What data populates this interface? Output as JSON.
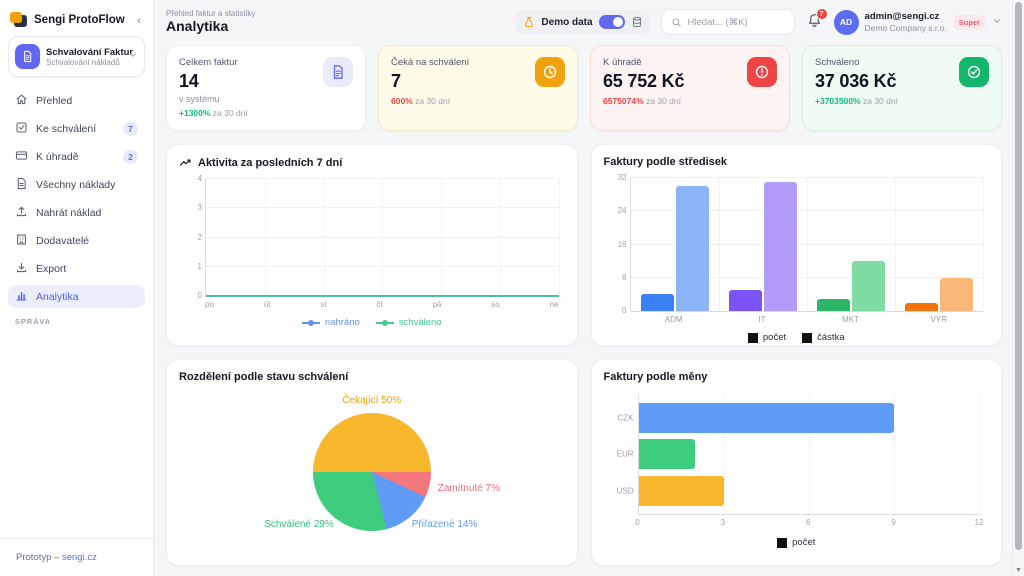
{
  "app": {
    "accent": "#5b6cf5"
  },
  "sidebar": {
    "brand": "Sengi ProtoFlow",
    "collapse_glyph": "‹",
    "workspace": {
      "title": "Schvalování Faktur",
      "subtitle": "Schvalování nákladů"
    },
    "items": [
      {
        "label": "Přehled",
        "icon": "home-icon"
      },
      {
        "label": "Ke schválení",
        "icon": "check-square-icon",
        "badge": "7"
      },
      {
        "label": "K úhradě",
        "icon": "credit-card-icon",
        "badge": "2"
      },
      {
        "label": "Všechny náklady",
        "icon": "file-text-icon"
      },
      {
        "label": "Nahrát náklad",
        "icon": "upload-icon"
      },
      {
        "label": "Dodavatelé",
        "icon": "building-icon"
      },
      {
        "label": "Export",
        "icon": "download-icon"
      },
      {
        "label": "Analytika",
        "icon": "bar-chart-icon",
        "active": true
      }
    ],
    "section_label": "SPRÁVA",
    "footer": {
      "text": "Prototyp",
      "separator": "–",
      "link": "sengi.cz"
    }
  },
  "header": {
    "breadcrumb": "Přehled faktur a statistiky",
    "title": "Analytika",
    "demo": {
      "label": "Demo data",
      "toggle_on": true
    },
    "search_placeholder": "Hledat... (⌘K)",
    "notification_count": "7",
    "user": {
      "initials": "AD",
      "email": "admin@sengi.cz",
      "company": "Demo Company s.r.o.",
      "role_badge": "Super"
    }
  },
  "stats": [
    {
      "label": "Celkem faktur",
      "value": "14",
      "sub": "v systému",
      "trend": "+1300%",
      "trend_note": "za 30 dní",
      "trend_color": "#10b981",
      "icon": "invoice-icon",
      "tint": "white"
    },
    {
      "label": "Čeká na schválení",
      "value": "7",
      "sub": "",
      "trend": "600%",
      "trend_note": "za 30 dní",
      "trend_color": "#ef4444",
      "icon": "clock-icon",
      "tint": "yellow"
    },
    {
      "label": "K úhradě",
      "value": "65 752 Kč",
      "sub": "",
      "trend": "6575074%",
      "trend_note": "za 30 dní",
      "trend_color": "#ef4444",
      "icon": "alert-icon",
      "tint": "red"
    },
    {
      "label": "Schváleno",
      "value": "37 036 Kč",
      "sub": "",
      "trend": "+3703500%",
      "trend_note": "za 30 dní",
      "trend_color": "#10b981",
      "icon": "check-icon",
      "tint": "green"
    }
  ],
  "chart_data": [
    {
      "name": "activity",
      "type": "line",
      "title": "Aktivita za posledních 7 dní",
      "title_icon": "trend-up-icon",
      "x": [
        "po",
        "út",
        "st",
        "čt",
        "pá",
        "so",
        "ne"
      ],
      "series": [
        {
          "name": "nahráno",
          "color": "#6690f2",
          "values": [
            0,
            0,
            0,
            0,
            0,
            0,
            0
          ]
        },
        {
          "name": "schváleno",
          "color": "#41c98e",
          "values": [
            0,
            0,
            0,
            0,
            0,
            0,
            0
          ]
        }
      ],
      "ylim": [
        0,
        4
      ],
      "yticks": [
        0,
        1,
        2,
        3,
        4
      ],
      "line_color": "#4bc3a2",
      "grid": true,
      "legend_position": "bottom"
    },
    {
      "name": "cost-centers",
      "type": "bar",
      "title": "Faktury podle středisek",
      "categories": [
        "ADM",
        "IT",
        "MKT",
        "VÝR"
      ],
      "series": [
        {
          "name": "počet",
          "values": [
            4,
            5,
            3,
            2
          ],
          "colors": [
            "#3b82f6",
            "#7c53f4",
            "#2eb567",
            "#f4740c"
          ]
        },
        {
          "name": "částka",
          "values": [
            30,
            31,
            12,
            8
          ],
          "colors": [
            "#8cb4f8",
            "#b29cf8",
            "#7fdca4",
            "#f9b878"
          ]
        }
      ],
      "ylim": [
        0,
        32
      ],
      "yticks": [
        0,
        8,
        16,
        24,
        32
      ],
      "legend": [
        "počet",
        "částka"
      ],
      "legend_marker_color": "#111111",
      "grid": true,
      "legend_position": "bottom"
    },
    {
      "name": "status-distribution",
      "type": "pie",
      "title": "Rozdělení podle stavu schválení",
      "start_angle_deg": 270,
      "slices": [
        {
          "label": "Čekající",
          "pct": 50,
          "color": "#f7b82d",
          "label_text": "Čekající 50%",
          "label_color": "#f59e0b"
        },
        {
          "label": "Zamítnuté",
          "pct": 7,
          "color": "#f3777d",
          "label_text": "Zamítnuté 7%",
          "label_color": "#ef6e74"
        },
        {
          "label": "Přiřazené",
          "pct": 14,
          "color": "#5e9cf5",
          "label_text": "Přiřazené 14%",
          "label_color": "#5e9cf5"
        },
        {
          "label": "Schválené",
          "pct": 29,
          "color": "#3ecc7e",
          "label_text": "Schválené 29%",
          "label_color": "#33c175"
        }
      ]
    },
    {
      "name": "currencies",
      "type": "bar-horizontal",
      "title": "Faktury podle měny",
      "categories": [
        "CZK",
        "EUR",
        "USD"
      ],
      "values": [
        9,
        2,
        3
      ],
      "colors": [
        "#5e9cf5",
        "#3ecc7e",
        "#f7b82d"
      ],
      "xlim": [
        0,
        12
      ],
      "xticks": [
        0,
        3,
        6,
        9,
        12
      ],
      "legend": [
        "počet"
      ],
      "legend_marker_color": "#111111",
      "grid": true,
      "legend_position": "bottom"
    }
  ]
}
